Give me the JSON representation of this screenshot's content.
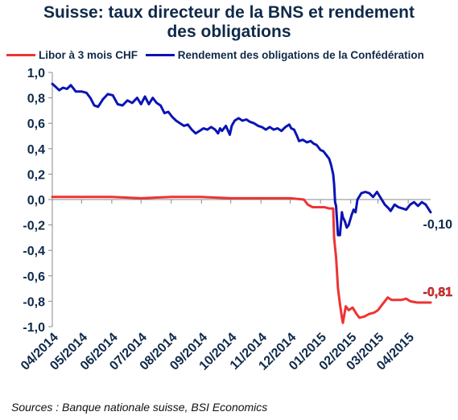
{
  "chart_data": {
    "type": "line",
    "title": "Suisse: taux directeur de la BNS et rendement des obligations",
    "title_lines": [
      "Suisse: taux directeur de la BNS et rendement",
      "des obligations"
    ],
    "source": "Sources : Banque nationale suisse, BSI Economics",
    "xlabel": "",
    "ylabel": "",
    "ylim": [
      -1.0,
      1.0
    ],
    "yticks": [
      1.0,
      0.8,
      0.6,
      0.4,
      0.2,
      0.0,
      -0.2,
      -0.4,
      -0.6,
      -0.8,
      -1.0
    ],
    "ytick_labels": [
      "1,0",
      "0,8",
      "0,6",
      "0,4",
      "0,2",
      "0,0",
      "-0,2",
      "-0,4",
      "-0,6",
      "-0,8",
      "-1,0"
    ],
    "x_range": [
      "2014-04-01",
      "2015-04-24"
    ],
    "x_tick_dates": [
      "2014-04-01",
      "2014-05-01",
      "2014-06-01",
      "2014-07-01",
      "2014-08-01",
      "2014-09-01",
      "2014-10-01",
      "2014-11-01",
      "2014-12-01",
      "2015-01-01",
      "2015-02-01",
      "2015-03-01",
      "2015-04-01"
    ],
    "x_tick_labels": [
      "04/2014",
      "05/2014",
      "06/2014",
      "07/2014",
      "08/2014",
      "09/2014",
      "10/2014",
      "11/2014",
      "12/2014",
      "01/2015",
      "02/2015",
      "03/2015",
      "04/2015"
    ],
    "legend_position": "top",
    "grid": false,
    "series": [
      {
        "name": "Libor à 3 mois CHF",
        "color": "#ee3333",
        "end_label": "-0,81",
        "points": [
          [
            "2014-04-01",
            0.02
          ],
          [
            "2014-05-01",
            0.02
          ],
          [
            "2014-06-01",
            0.02
          ],
          [
            "2014-07-01",
            0.01
          ],
          [
            "2014-08-01",
            0.02
          ],
          [
            "2014-09-01",
            0.02
          ],
          [
            "2014-10-01",
            0.01
          ],
          [
            "2014-11-01",
            0.01
          ],
          [
            "2014-12-01",
            0.01
          ],
          [
            "2014-12-15",
            0.0
          ],
          [
            "2014-12-19",
            -0.04
          ],
          [
            "2014-12-24",
            -0.06
          ],
          [
            "2015-01-05",
            -0.06
          ],
          [
            "2015-01-10",
            -0.07
          ],
          [
            "2015-01-14",
            -0.07
          ],
          [
            "2015-01-15",
            -0.3
          ],
          [
            "2015-01-16",
            -0.38
          ],
          [
            "2015-01-17",
            -0.45
          ],
          [
            "2015-01-19",
            -0.7
          ],
          [
            "2015-01-21",
            -0.82
          ],
          [
            "2015-01-23",
            -0.93
          ],
          [
            "2015-01-24",
            -0.97
          ],
          [
            "2015-01-27",
            -0.84
          ],
          [
            "2015-01-30",
            -0.87
          ],
          [
            "2015-02-03",
            -0.85
          ],
          [
            "2015-02-07",
            -0.9
          ],
          [
            "2015-02-10",
            -0.93
          ],
          [
            "2015-02-15",
            -0.92
          ],
          [
            "2015-02-20",
            -0.9
          ],
          [
            "2015-02-25",
            -0.89
          ],
          [
            "2015-03-01",
            -0.87
          ],
          [
            "2015-03-05",
            -0.83
          ],
          [
            "2015-03-08",
            -0.8
          ],
          [
            "2015-03-11",
            -0.77
          ],
          [
            "2015-03-15",
            -0.79
          ],
          [
            "2015-03-20",
            -0.79
          ],
          [
            "2015-03-25",
            -0.79
          ],
          [
            "2015-03-30",
            -0.78
          ],
          [
            "2015-04-03",
            -0.8
          ],
          [
            "2015-04-10",
            -0.81
          ],
          [
            "2015-04-17",
            -0.81
          ],
          [
            "2015-04-24",
            -0.81
          ]
        ]
      },
      {
        "name": "Rendement des obligations de la Confédération",
        "color": "#0a14b4",
        "end_label": "-0,10",
        "points": [
          [
            "2014-04-01",
            0.91
          ],
          [
            "2014-04-04",
            0.89
          ],
          [
            "2014-04-08",
            0.86
          ],
          [
            "2014-04-12",
            0.88
          ],
          [
            "2014-04-16",
            0.87
          ],
          [
            "2014-04-20",
            0.9
          ],
          [
            "2014-04-25",
            0.85
          ],
          [
            "2014-05-01",
            0.85
          ],
          [
            "2014-05-06",
            0.84
          ],
          [
            "2014-05-10",
            0.8
          ],
          [
            "2014-05-14",
            0.74
          ],
          [
            "2014-05-18",
            0.73
          ],
          [
            "2014-05-23",
            0.79
          ],
          [
            "2014-05-28",
            0.83
          ],
          [
            "2014-06-02",
            0.82
          ],
          [
            "2014-06-07",
            0.75
          ],
          [
            "2014-06-12",
            0.74
          ],
          [
            "2014-06-17",
            0.78
          ],
          [
            "2014-06-22",
            0.76
          ],
          [
            "2014-06-27",
            0.8
          ],
          [
            "2014-07-01",
            0.75
          ],
          [
            "2014-07-05",
            0.81
          ],
          [
            "2014-07-09",
            0.75
          ],
          [
            "2014-07-13",
            0.8
          ],
          [
            "2014-07-17",
            0.76
          ],
          [
            "2014-07-21",
            0.74
          ],
          [
            "2014-07-25",
            0.68
          ],
          [
            "2014-07-29",
            0.69
          ],
          [
            "2014-08-02",
            0.65
          ],
          [
            "2014-08-06",
            0.62
          ],
          [
            "2014-08-10",
            0.6
          ],
          [
            "2014-08-14",
            0.58
          ],
          [
            "2014-08-18",
            0.59
          ],
          [
            "2014-08-22",
            0.55
          ],
          [
            "2014-08-26",
            0.52
          ],
          [
            "2014-08-30",
            0.54
          ],
          [
            "2014-09-03",
            0.56
          ],
          [
            "2014-09-07",
            0.55
          ],
          [
            "2014-09-11",
            0.57
          ],
          [
            "2014-09-15",
            0.55
          ],
          [
            "2014-09-18",
            0.52
          ],
          [
            "2014-09-20",
            0.56
          ],
          [
            "2014-09-22",
            0.54
          ],
          [
            "2014-09-26",
            0.58
          ],
          [
            "2014-09-30",
            0.51
          ],
          [
            "2014-10-02",
            0.58
          ],
          [
            "2014-10-05",
            0.62
          ],
          [
            "2014-10-09",
            0.64
          ],
          [
            "2014-10-13",
            0.62
          ],
          [
            "2014-10-17",
            0.63
          ],
          [
            "2014-10-21",
            0.61
          ],
          [
            "2014-10-25",
            0.6
          ],
          [
            "2014-10-29",
            0.58
          ],
          [
            "2014-11-02",
            0.57
          ],
          [
            "2014-11-06",
            0.55
          ],
          [
            "2014-11-10",
            0.57
          ],
          [
            "2014-11-14",
            0.55
          ],
          [
            "2014-11-18",
            0.56
          ],
          [
            "2014-11-22",
            0.54
          ],
          [
            "2014-11-26",
            0.57
          ],
          [
            "2014-11-30",
            0.59
          ],
          [
            "2014-12-02",
            0.56
          ],
          [
            "2014-12-05",
            0.55
          ],
          [
            "2014-12-08",
            0.5
          ],
          [
            "2014-12-10",
            0.46
          ],
          [
            "2014-12-14",
            0.47
          ],
          [
            "2014-12-18",
            0.45
          ],
          [
            "2014-12-22",
            0.46
          ],
          [
            "2014-12-25",
            0.44
          ],
          [
            "2014-12-28",
            0.43
          ],
          [
            "2015-01-01",
            0.39
          ],
          [
            "2015-01-04",
            0.38
          ],
          [
            "2015-01-07",
            0.35
          ],
          [
            "2015-01-10",
            0.32
          ],
          [
            "2015-01-12",
            0.27
          ],
          [
            "2015-01-14",
            0.2
          ],
          [
            "2015-01-15",
            0.12
          ],
          [
            "2015-01-16",
            -0.02
          ],
          [
            "2015-01-17",
            -0.05
          ],
          [
            "2015-01-19",
            -0.28
          ],
          [
            "2015-01-21",
            -0.28
          ],
          [
            "2015-01-23",
            -0.1
          ],
          [
            "2015-01-24",
            -0.14
          ],
          [
            "2015-01-26",
            -0.17
          ],
          [
            "2015-01-28",
            -0.22
          ],
          [
            "2015-01-30",
            -0.2
          ],
          [
            "2015-02-02",
            -0.12
          ],
          [
            "2015-02-04",
            -0.08
          ],
          [
            "2015-02-06",
            -0.1
          ],
          [
            "2015-02-08",
            0.0
          ],
          [
            "2015-02-12",
            0.05
          ],
          [
            "2015-02-16",
            0.06
          ],
          [
            "2015-02-20",
            0.05
          ],
          [
            "2015-02-24",
            0.02
          ],
          [
            "2015-02-28",
            0.06
          ],
          [
            "2015-03-04",
            0.01
          ],
          [
            "2015-03-08",
            -0.04
          ],
          [
            "2015-03-12",
            -0.07
          ],
          [
            "2015-03-14",
            -0.09
          ],
          [
            "2015-03-18",
            -0.04
          ],
          [
            "2015-03-22",
            -0.06
          ],
          [
            "2015-03-26",
            -0.07
          ],
          [
            "2015-03-30",
            -0.08
          ],
          [
            "2015-04-03",
            -0.04
          ],
          [
            "2015-04-07",
            -0.02
          ],
          [
            "2015-04-11",
            -0.05
          ],
          [
            "2015-04-15",
            -0.02
          ],
          [
            "2015-04-19",
            -0.04
          ],
          [
            "2015-04-24",
            -0.1
          ]
        ]
      }
    ]
  }
}
